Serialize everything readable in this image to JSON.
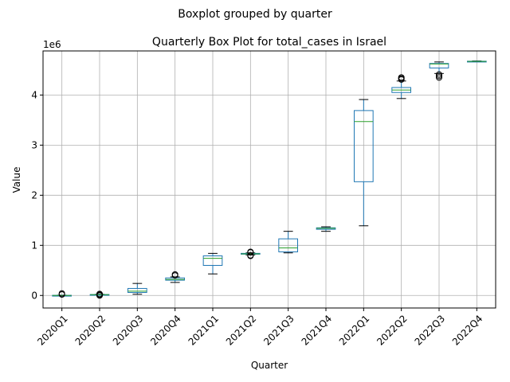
{
  "chart_data": {
    "type": "boxplot",
    "suptitle": "Boxplot grouped by quarter",
    "title": "Quarterly Box Plot for total_cases in Israel",
    "xlabel": "Quarter",
    "ylabel": "Value",
    "y_scale_label": "1e6",
    "ylim": [
      -0.25,
      4.88
    ],
    "yticks": [
      0,
      1,
      2,
      3,
      4
    ],
    "grid": true,
    "categories": [
      "2020Q1",
      "2020Q2",
      "2020Q3",
      "2020Q4",
      "2021Q1",
      "2021Q2",
      "2021Q3",
      "2021Q4",
      "2022Q1",
      "2022Q2",
      "2022Q3",
      "2022Q4"
    ],
    "boxes": [
      {
        "whislo": 0.0,
        "q1": 0.0,
        "med": 0.001,
        "q3": 0.003,
        "whishi": 0.006,
        "fliers": [
          0.02,
          0.04
        ]
      },
      {
        "whislo": 0.006,
        "q1": 0.012,
        "med": 0.016,
        "q3": 0.019,
        "whishi": 0.024,
        "fliers": [
          0.0,
          0.01,
          0.015,
          0.03
        ]
      },
      {
        "whislo": 0.025,
        "q1": 0.06,
        "med": 0.085,
        "q3": 0.14,
        "whishi": 0.24,
        "fliers": []
      },
      {
        "whislo": 0.26,
        "q1": 0.305,
        "med": 0.32,
        "q3": 0.35,
        "whishi": 0.37,
        "fliers": [
          0.4,
          0.42
        ]
      },
      {
        "whislo": 0.43,
        "q1": 0.6,
        "med": 0.74,
        "q3": 0.79,
        "whishi": 0.84,
        "fliers": []
      },
      {
        "whislo": 0.81,
        "q1": 0.825,
        "med": 0.83,
        "q3": 0.84,
        "whishi": 0.85,
        "fliers": [
          0.79,
          0.8,
          0.86,
          0.87
        ]
      },
      {
        "whislo": 0.85,
        "q1": 0.87,
        "med": 0.95,
        "q3": 1.13,
        "whishi": 1.28,
        "fliers": []
      },
      {
        "whislo": 1.28,
        "q1": 1.32,
        "med": 1.34,
        "q3": 1.35,
        "whishi": 1.37,
        "fliers": []
      },
      {
        "whislo": 1.39,
        "q1": 2.27,
        "med": 3.47,
        "q3": 3.69,
        "whishi": 3.91,
        "fliers": []
      },
      {
        "whislo": 3.93,
        "q1": 4.05,
        "med": 4.1,
        "q3": 4.15,
        "whishi": 4.28,
        "fliers": [
          4.31,
          4.33,
          4.35
        ]
      },
      {
        "whislo": 4.43,
        "q1": 4.54,
        "med": 4.62,
        "q3": 4.63,
        "whishi": 4.66,
        "fliers": [
          4.35,
          4.38,
          4.41
        ]
      },
      {
        "whislo": 4.665,
        "q1": 4.67,
        "med": 4.672,
        "q3": 4.675,
        "whishi": 4.68,
        "fliers": []
      }
    ],
    "colors": {
      "box": "#1f77b4",
      "median": "#2ca02c",
      "whisker": "#000000",
      "grid": "#b0b0b0",
      "flier": "#000000"
    }
  }
}
